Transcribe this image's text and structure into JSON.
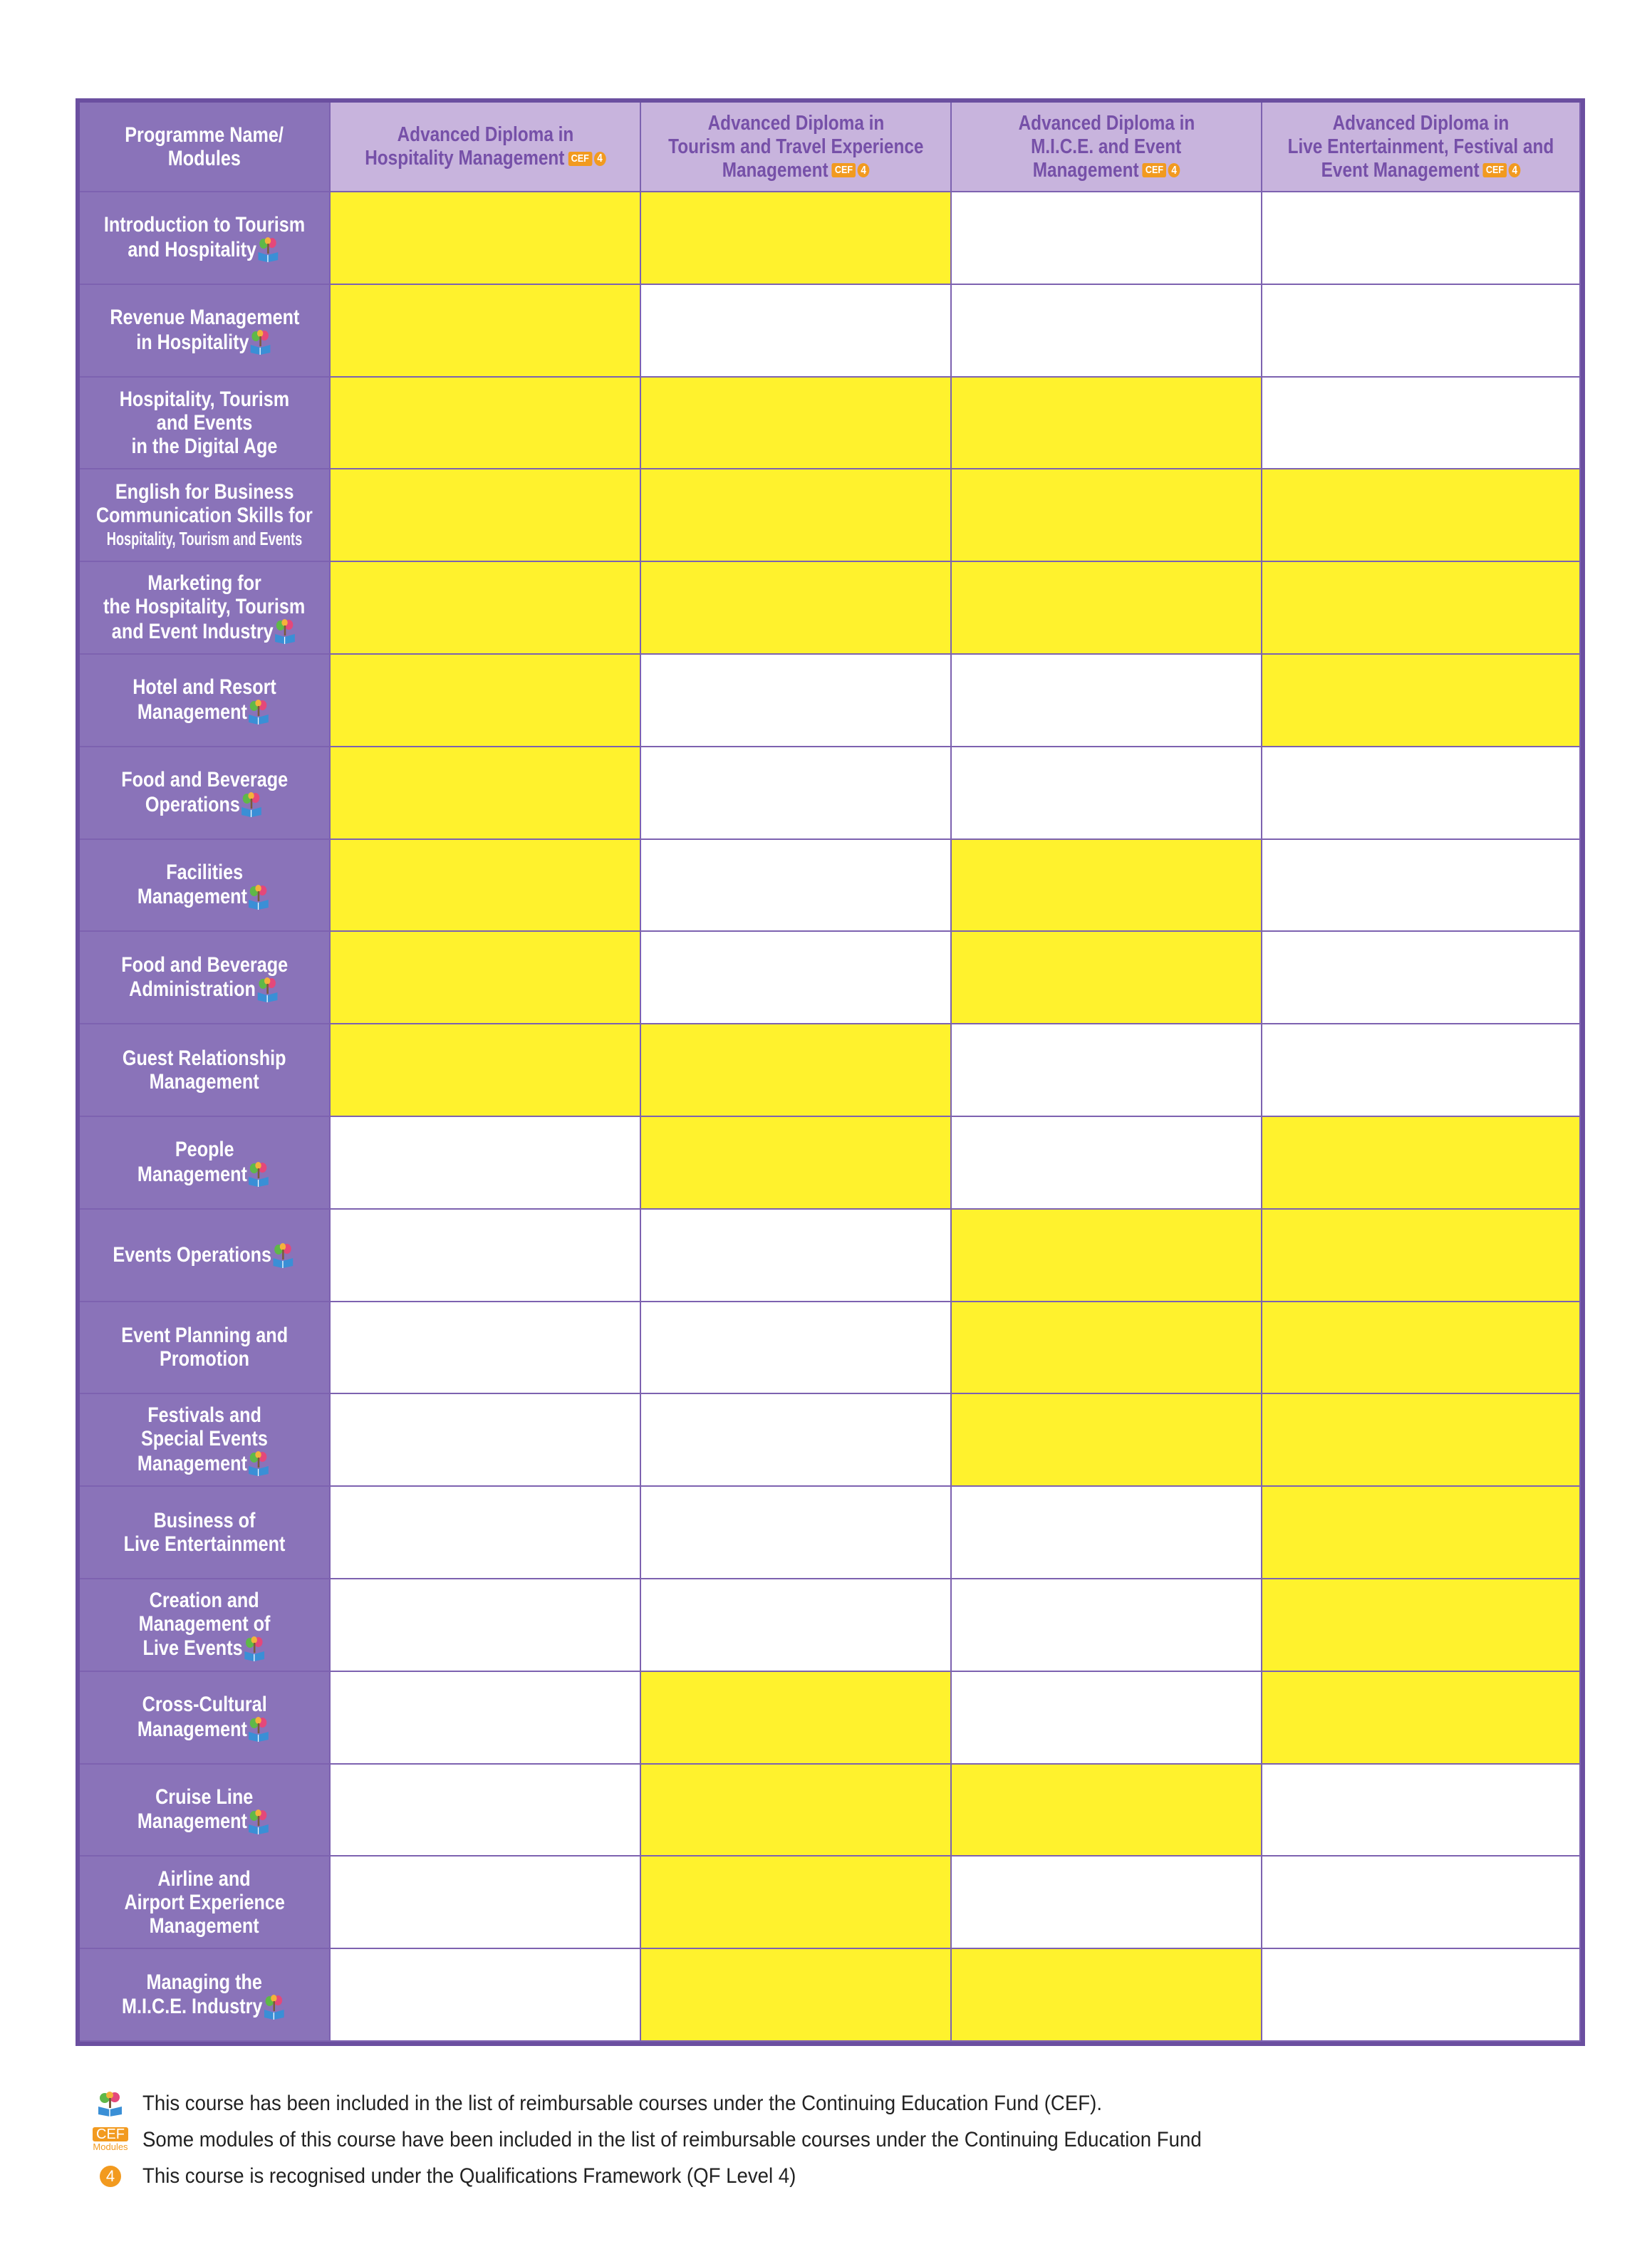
{
  "table": {
    "header": {
      "corner": [
        "Programme Name/",
        "Modules"
      ],
      "columns": [
        [
          "Advanced Diploma in",
          "Hospitality Management"
        ],
        [
          "Advanced Diploma in",
          "Tourism and Travel Experience",
          "Management"
        ],
        [
          "Advanced Diploma in",
          "M.I.C.E. and Event",
          "Management"
        ],
        [
          "Advanced Diploma in",
          "Live Entertainment, Festival and",
          "Event Management"
        ]
      ],
      "badge": {
        "cef": "CEF",
        "qf": "4"
      }
    },
    "highlight_color": "#fff22d",
    "rows": [
      {
        "lines": [
          "Introduction to Tourism",
          "and Hospitality"
        ],
        "cef_icon": true,
        "cells": [
          true,
          true,
          false,
          false
        ]
      },
      {
        "lines": [
          "Revenue Management",
          "in Hospitality"
        ],
        "cef_icon": true,
        "cells": [
          true,
          false,
          false,
          false
        ]
      },
      {
        "lines": [
          "Hospitality, Tourism",
          "and Events",
          "in the Digital Age"
        ],
        "cef_icon": false,
        "cells": [
          true,
          true,
          true,
          false
        ]
      },
      {
        "lines": [
          "English for Business",
          "Communication Skills for",
          "Hospitality, Tourism and Events"
        ],
        "cef_icon": false,
        "cells": [
          true,
          true,
          true,
          true
        ]
      },
      {
        "lines": [
          "Marketing for",
          "the Hospitality, Tourism",
          "and Event Industry"
        ],
        "cef_icon": true,
        "cells": [
          true,
          true,
          true,
          true
        ]
      },
      {
        "lines": [
          "Hotel and Resort",
          "Management"
        ],
        "cef_icon": true,
        "cells": [
          true,
          false,
          false,
          true
        ]
      },
      {
        "lines": [
          "Food and Beverage",
          "Operations"
        ],
        "cef_icon": true,
        "cells": [
          true,
          false,
          false,
          false
        ]
      },
      {
        "lines": [
          "Facilities",
          "Management"
        ],
        "cef_icon": true,
        "cells": [
          true,
          false,
          true,
          false
        ]
      },
      {
        "lines": [
          "Food and Beverage",
          "Administration"
        ],
        "cef_icon": true,
        "cells": [
          true,
          false,
          true,
          false
        ]
      },
      {
        "lines": [
          "Guest Relationship",
          "Management"
        ],
        "cef_icon": false,
        "cells": [
          true,
          true,
          false,
          false
        ]
      },
      {
        "lines": [
          "People",
          "Management"
        ],
        "cef_icon": true,
        "cells": [
          false,
          true,
          false,
          true
        ]
      },
      {
        "lines": [
          "Events Operations"
        ],
        "cef_icon": true,
        "cells": [
          false,
          false,
          true,
          true
        ]
      },
      {
        "lines": [
          "Event Planning and",
          "Promotion"
        ],
        "cef_icon": false,
        "cells": [
          false,
          false,
          true,
          true
        ]
      },
      {
        "lines": [
          "Festivals and",
          "Special Events",
          "Management"
        ],
        "cef_icon": true,
        "cells": [
          false,
          false,
          true,
          true
        ]
      },
      {
        "lines": [
          "Business of",
          "Live Entertainment"
        ],
        "cef_icon": false,
        "cells": [
          false,
          false,
          false,
          true
        ]
      },
      {
        "lines": [
          "Creation and",
          "Management of",
          "Live Events"
        ],
        "cef_icon": true,
        "cells": [
          false,
          false,
          false,
          true
        ]
      },
      {
        "lines": [
          "Cross-Cultural",
          "Management"
        ],
        "cef_icon": true,
        "cells": [
          false,
          true,
          false,
          true
        ]
      },
      {
        "lines": [
          "Cruise Line",
          "Management"
        ],
        "cef_icon": true,
        "cells": [
          false,
          true,
          true,
          false
        ]
      },
      {
        "lines": [
          "Airline and",
          "Airport Experience",
          "Management"
        ],
        "cef_icon": false,
        "cells": [
          false,
          true,
          false,
          false
        ]
      },
      {
        "lines": [
          "Managing the",
          "M.I.C.E. Industry"
        ],
        "cef_icon": true,
        "cells": [
          false,
          true,
          true,
          false
        ]
      }
    ]
  },
  "legend": [
    {
      "icon": "cef",
      "text": "This course has been included in the list of reimbursable courses under the Continuing Education Fund (CEF)."
    },
    {
      "icon": "modules",
      "icon_text": [
        "CEF",
        "Modules"
      ],
      "text": "Some modules of this course have been included in the list of reimbursable courses under the Continuing Education Fund"
    },
    {
      "icon": "qf",
      "icon_text": [
        "4"
      ],
      "text": "This course is recognised under the Qualifications Framework (QF Level 4)"
    }
  ]
}
